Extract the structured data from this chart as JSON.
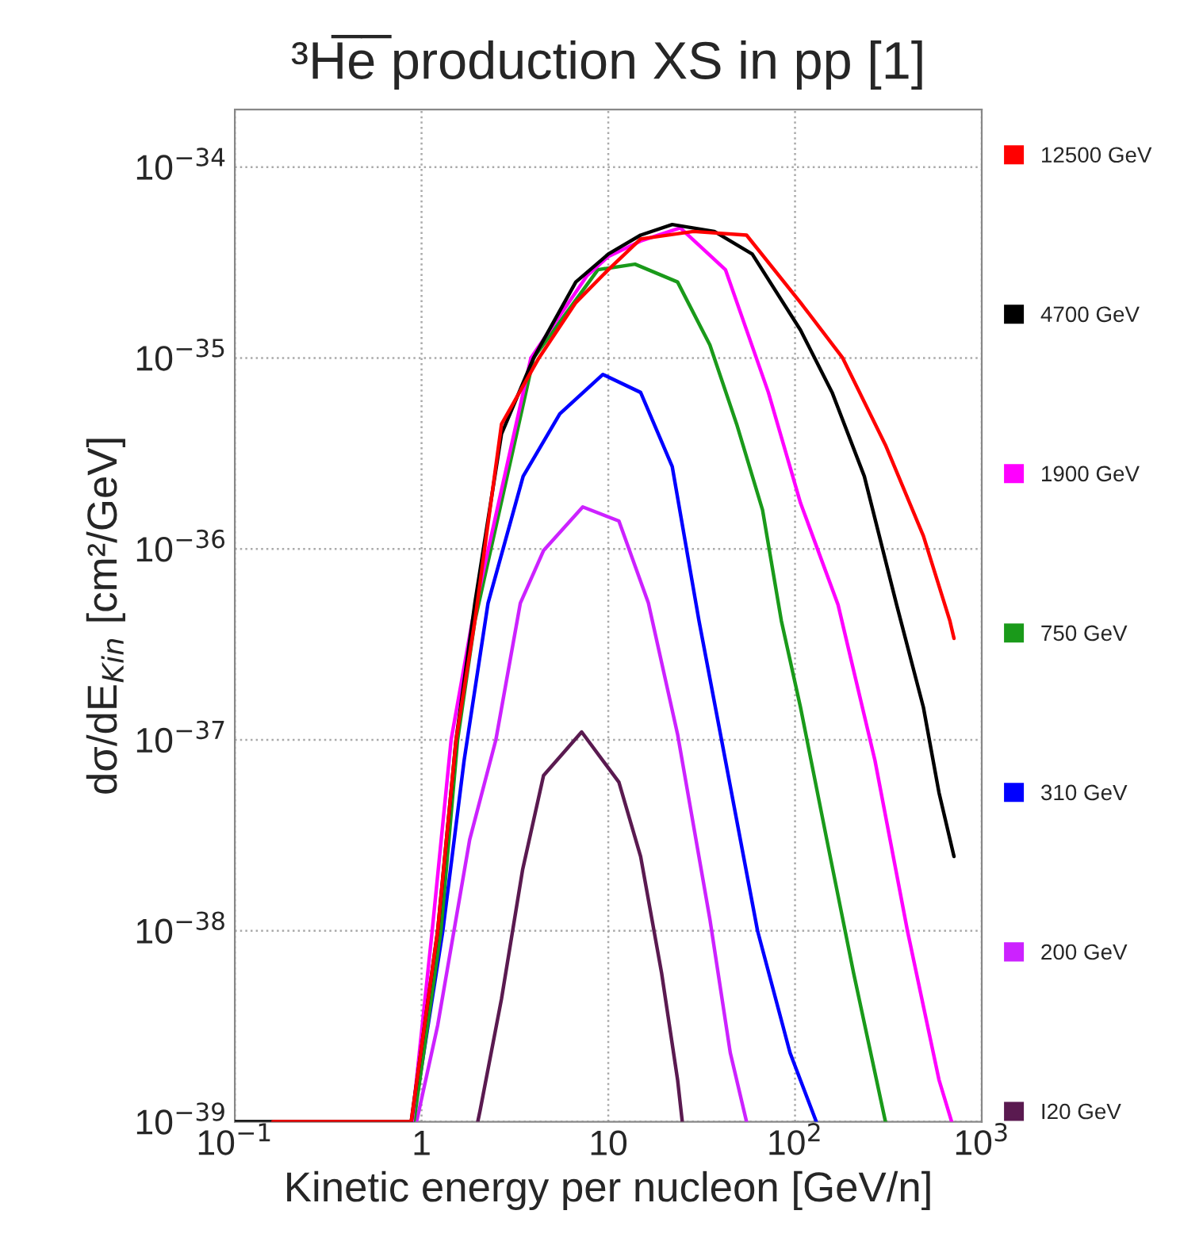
{
  "chart_data": {
    "type": "line",
    "title": "³H̅e̅ production XS in pp [1]",
    "xlabel": "Kinetic energy per nucleon [GeV/n]",
    "ylabel": "dσ/dE$_{Kin}$ [cm²/GeV]",
    "log": "xy",
    "xlim": [
      0.1,
      1000
    ],
    "ylim": [
      1e-39,
      2e-34
    ],
    "xticks": [
      {
        "value": 0.1,
        "label": "10$^{−1}$"
      },
      1,
      10,
      {
        "value": 100,
        "label": "10$^{2}$"
      },
      {
        "value": 1000,
        "label": "10$^{3}$"
      }
    ],
    "yticks": [
      {
        "value": 1e-39,
        "label": "10$^{−39}$"
      },
      {
        "value": 1e-38,
        "label": "10$^{−38}$"
      },
      {
        "value": 1e-37,
        "label": "10$^{−37}$"
      },
      {
        "value": 1e-36,
        "label": "10$^{−36}$"
      },
      {
        "value": 1e-35,
        "label": "10$^{−35}$"
      },
      {
        "value": 1e-34,
        "label": "10$^{−34}$"
      }
    ],
    "grid": true,
    "legend": "right",
    "marker": "none",
    "line_style": "solid",
    "series": [
      {
        "name": "12500 GeV",
        "color": "#ff0000",
        "x": [
          0.16,
          0.88,
          1.22,
          1.53,
          1.93,
          2.68,
          4.25,
          6.7,
          10,
          14.9,
          28.6,
          55,
          107,
          180,
          305,
          487,
          675,
          710
        ],
        "values": [
          1e-39,
          1e-39,
          1e-38,
          1e-37,
          4.2e-37,
          4.5e-36,
          1e-35,
          1.95e-35,
          2.9e-35,
          4.2e-35,
          4.6e-35,
          4.4e-35,
          1.95e-35,
          1e-35,
          3.5e-36,
          1.17e-36,
          4.2e-37,
          3.4e-37
        ]
      },
      {
        "name": "4700 GeV",
        "color": "#000000",
        "x": [
          0.1,
          0.88,
          1.22,
          1.53,
          1.93,
          2.68,
          3.98,
          6.7,
          10,
          14.9,
          22,
          37,
          59,
          107,
          158,
          235,
          350,
          487,
          590,
          710
        ],
        "values": [
          1e-39,
          1e-39,
          1e-38,
          1e-37,
          5.2e-37,
          4e-36,
          1e-35,
          2.5e-35,
          3.5e-35,
          4.4e-35,
          5e-35,
          4.6e-35,
          3.5e-35,
          1.4e-35,
          6.6e-36,
          2.4e-36,
          5.1e-37,
          1.48e-37,
          5.3e-38,
          2.45e-38
        ]
      },
      {
        "name": "1900 GeV",
        "color": "#ff00ff",
        "x": [
          0.89,
          1.14,
          1.44,
          1.87,
          3.85,
          7.7,
          10,
          14.9,
          24.3,
          42.4,
          72,
          107,
          170,
          268,
          400,
          590,
          690
        ],
        "values": [
          1e-39,
          1e-38,
          1e-37,
          4.2e-37,
          1e-35,
          2.7e-35,
          3.4e-35,
          4.1e-35,
          4.8e-35,
          2.9e-35,
          6.6e-36,
          1.74e-36,
          5.1e-37,
          7.8e-38,
          1e-38,
          1.66e-39,
          1e-39
        ]
      },
      {
        "name": "750 GeV",
        "color": "#1a9a1a",
        "x": [
          0.91,
          1.27,
          1.56,
          1.93,
          3.98,
          8.8,
          13.9,
          23.5,
          35,
          48.7,
          67,
          84.5,
          107,
          148,
          206,
          305
        ],
        "values": [
          1e-39,
          1e-38,
          1e-37,
          4.2e-37,
          1e-35,
          2.9e-35,
          3.1e-35,
          2.5e-35,
          1.17e-35,
          4.5e-36,
          1.6e-36,
          4.2e-37,
          1.48e-37,
          3e-38,
          6e-39,
          1e-39
        ]
      },
      {
        "name": "310 GeV",
        "color": "#0000ff",
        "x": [
          0.9,
          1.3,
          1.69,
          2.27,
          3.5,
          5.5,
          9.36,
          14.9,
          22,
          30.6,
          42.4,
          63,
          94,
          130
        ],
        "values": [
          1e-39,
          1e-38,
          7.8e-38,
          5.2e-37,
          2.4e-36,
          5.1e-36,
          8.2e-36,
          6.6e-36,
          2.7e-36,
          4.2e-37,
          7.8e-38,
          1e-38,
          2.3e-39,
          1e-39
        ]
      },
      {
        "name": "200 GeV",
        "color": "#cc22ff",
        "x": [
          0.94,
          1.22,
          1.81,
          2.5,
          3.38,
          4.5,
          7.3,
          11.4,
          16.4,
          23.5,
          35,
          45,
          55
        ],
        "values": [
          1e-39,
          3.2e-39,
          3e-38,
          1e-37,
          5.2e-37,
          9.8e-37,
          1.66e-36,
          1.4e-36,
          5.2e-37,
          1.07e-37,
          1.15e-38,
          2.3e-39,
          1e-39
        ]
      },
      {
        "name": "I20 GeV",
        "color": "#5a1a50",
        "x": [
          2.0,
          2.06,
          2.68,
          3.48,
          4.5,
          7.2,
          11.4,
          14.9,
          19.3,
          23.5,
          24.9
        ],
        "values": [
          1e-39,
          1.15e-39,
          4.4e-39,
          2.1e-38,
          6.5e-38,
          1.1e-37,
          6e-38,
          2.45e-38,
          6e-39,
          1.66e-39,
          1e-39
        ]
      }
    ]
  }
}
